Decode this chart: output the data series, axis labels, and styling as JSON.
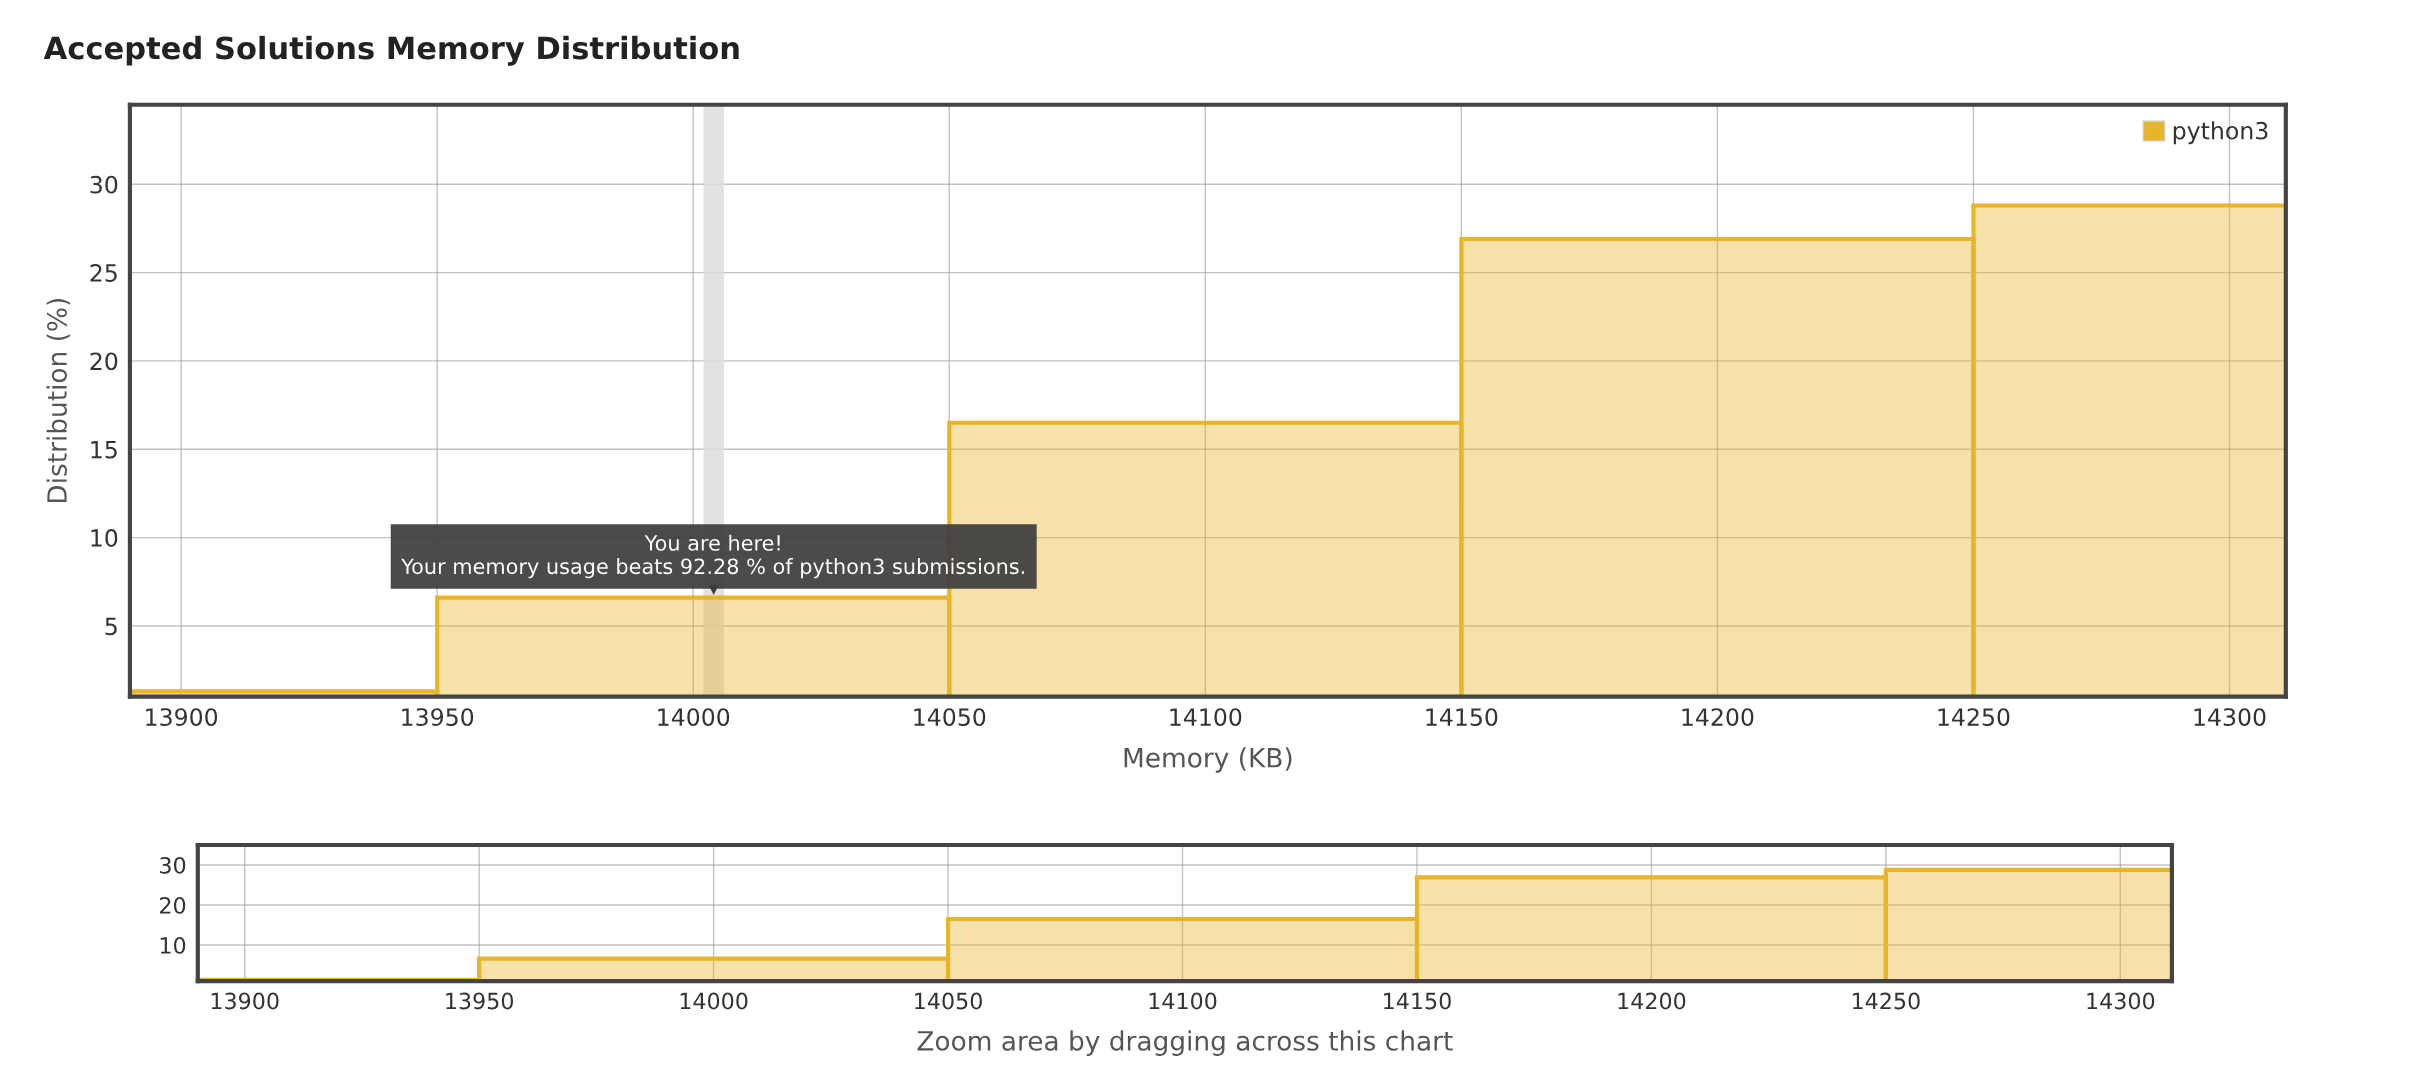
{
  "chart_data": [
    {
      "type": "histogram",
      "title": "Accepted Solutions Memory Distribution",
      "xlabel": "Memory (KB)",
      "ylabel": "Distribution (%)",
      "bins": [
        13850,
        13950,
        14050,
        14150,
        14250,
        14350
      ],
      "series": [
        {
          "name": "python3",
          "color": "#e8b42a",
          "values": [
            1.3,
            6.6,
            16.5,
            26.9,
            28.8
          ]
        }
      ],
      "xlim": [
        13890,
        14311
      ],
      "xticks": [
        13900,
        13950,
        14000,
        14050,
        14100,
        14150,
        14200,
        14250,
        14300
      ],
      "ylim": [
        1,
        34.5
      ],
      "yticks": [
        5,
        10,
        15,
        20,
        25,
        30
      ],
      "bands": [
        {
          "axis": "x",
          "from": 14002,
          "to": 14006,
          "color": "#dddddd"
        }
      ],
      "annotations": [
        {
          "text": "You are here!\nYour memory usage beats 92.28 % of python3 submissions.",
          "x": 14004,
          "y": 6.6
        }
      ],
      "grid": true,
      "legend": "top right"
    },
    {
      "type": "histogram",
      "xlabel": "Zoom area by dragging across this chart",
      "bins": [
        13850,
        13950,
        14050,
        14150,
        14250,
        14350
      ],
      "series": [
        {
          "color": "#e8b42a",
          "values": [
            1.3,
            6.6,
            16.5,
            26.9,
            28.8
          ]
        }
      ],
      "xlim": [
        13890,
        14311
      ],
      "xticks": [
        13900,
        13950,
        14000,
        14050,
        14100,
        14150,
        14200,
        14250,
        14300
      ],
      "ylim": [
        1,
        35
      ],
      "yticks": [
        10,
        20,
        30
      ],
      "grid": true,
      "legend": false
    }
  ]
}
